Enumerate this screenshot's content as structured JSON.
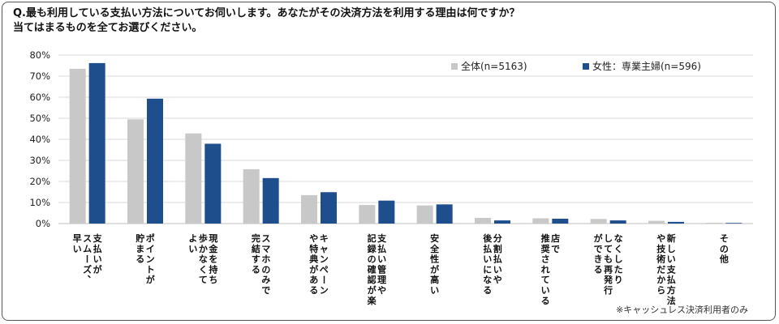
{
  "question": {
    "line1": "Q.最も利用している支払い方法についてお伺いします。あなたがその決済方法を利用する理由は何ですか？",
    "line2": "当てはまるものを全てお選びください。"
  },
  "note": "※キャッシュレス決済利用者のみ",
  "colors": {
    "overall": "#c8c8c8",
    "housewife": "#1f4e8c",
    "grid": "#d9d9d9",
    "axis": "#bfbfbf"
  },
  "chart_data": {
    "type": "bar",
    "title": "",
    "xlabel": "",
    "ylabel": "",
    "ylim": [
      0,
      80
    ],
    "yticks": [
      "0%",
      "10%",
      "20%",
      "30%",
      "40%",
      "50%",
      "60%",
      "70%",
      "80%"
    ],
    "grid": true,
    "legend_position": "top-right",
    "categories": [
      [
        "支払いが",
        "スムーズ、",
        "早い"
      ],
      [
        "ポイントが",
        "貯まる"
      ],
      [
        "現金を持ち",
        "歩かなくて",
        "よい"
      ],
      [
        "スマホのみで",
        "完結する"
      ],
      [
        "キャンペーン",
        "や特典がある"
      ],
      [
        "支払い管理や",
        "記録の確認が楽"
      ],
      [
        "安全性が高い"
      ],
      [
        "分割払いや",
        "後払いになる"
      ],
      [
        "店で",
        "推奨されている"
      ],
      [
        "なくしたり",
        "しても再発行",
        "ができる"
      ],
      [
        "新しい支払方法",
        "や技術だから"
      ],
      [
        "その他"
      ]
    ],
    "series": [
      {
        "name": "全体(n=5163)",
        "color": "#c8c8c8",
        "values": [
          73.5,
          49.5,
          42.8,
          25.8,
          13.5,
          8.8,
          8.6,
          2.7,
          2.5,
          2.2,
          1.3,
          0.4
        ]
      },
      {
        "name": "女性：専業主婦(n=596)",
        "color": "#1f4e8c",
        "values": [
          76.2,
          59.3,
          37.9,
          21.6,
          14.9,
          10.9,
          9.1,
          1.5,
          2.3,
          1.5,
          0.8,
          0.3
        ]
      }
    ]
  }
}
